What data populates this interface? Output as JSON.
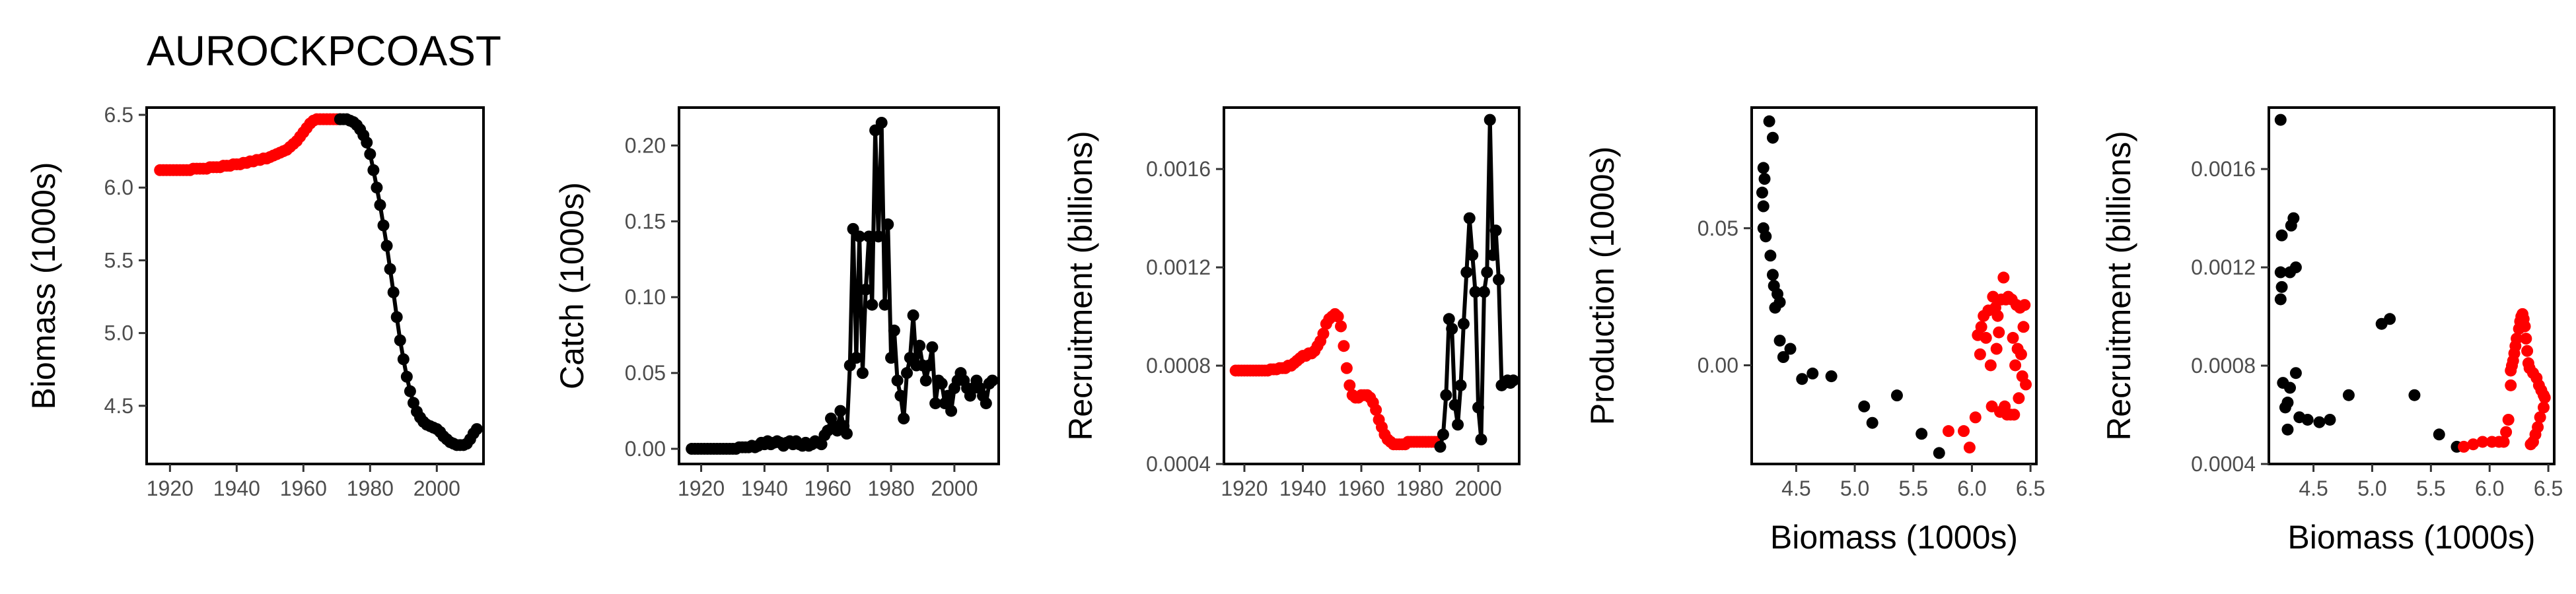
{
  "title": "AUROCKPCOAST",
  "colors": {
    "early": "#ff0000",
    "late": "#000000",
    "axis": "#000000",
    "tick_text": "#4d4d4d"
  },
  "chart_data": [
    {
      "type": "line",
      "xlabel": "",
      "ylabel": "Biomass (1000s)",
      "xlim": [
        1913,
        2014
      ],
      "ylim": [
        4.1,
        6.55
      ],
      "xticks": [
        1920,
        1940,
        1960,
        1980,
        2000
      ],
      "yticks": [
        4.5,
        5.0,
        5.5,
        6.0,
        6.5
      ],
      "ytick_labels": [
        "4.5",
        "5.0",
        "5.5",
        "6.0",
        "6.5"
      ],
      "series": [
        {
          "color": "red",
          "connected": false,
          "x_start": 1917,
          "x_end": 1971,
          "values": [
            6.12,
            6.12,
            6.12,
            6.12,
            6.12,
            6.12,
            6.12,
            6.12,
            6.12,
            6.12,
            6.13,
            6.13,
            6.13,
            6.13,
            6.13,
            6.14,
            6.14,
            6.14,
            6.14,
            6.15,
            6.15,
            6.15,
            6.16,
            6.16,
            6.16,
            6.17,
            6.17,
            6.18,
            6.18,
            6.19,
            6.19,
            6.2,
            6.2,
            6.21,
            6.22,
            6.23,
            6.24,
            6.25,
            6.26,
            6.28,
            6.3,
            6.32,
            6.35,
            6.38,
            6.41,
            6.44,
            6.46,
            6.47,
            6.47,
            6.47,
            6.47,
            6.47,
            6.47,
            6.47,
            6.47
          ]
        },
        {
          "color": "black",
          "connected": true,
          "x_start": 1971,
          "x_end": 2012,
          "values": [
            6.47,
            6.47,
            6.47,
            6.46,
            6.45,
            6.43,
            6.4,
            6.36,
            6.31,
            6.23,
            6.12,
            6.0,
            5.88,
            5.74,
            5.6,
            5.44,
            5.28,
            5.11,
            4.95,
            4.82,
            4.7,
            4.6,
            4.52,
            4.46,
            4.42,
            4.39,
            4.37,
            4.36,
            4.35,
            4.34,
            4.32,
            4.29,
            4.27,
            4.25,
            4.24,
            4.23,
            4.23,
            4.23,
            4.24,
            4.27,
            4.31,
            4.34
          ]
        }
      ]
    },
    {
      "type": "line",
      "xlabel": "",
      "ylabel": "Catch (1000s)",
      "xlim": [
        1913,
        2014
      ],
      "ylim": [
        -0.01,
        0.225
      ],
      "xticks": [
        1920,
        1940,
        1960,
        1980,
        2000
      ],
      "xtick_labels": [
        "1920",
        "1940",
        "1960",
        "1980",
        "2000"
      ],
      "yticks": [
        0.0,
        0.05,
        0.1,
        0.15,
        0.2
      ],
      "ytick_labels": [
        "0.00",
        "0.05",
        "0.10",
        "0.15",
        "0.20"
      ],
      "series": [
        {
          "color": "black",
          "connected": true,
          "x_start": 1917,
          "x_end": 2012,
          "values": [
            0,
            0,
            0,
            0,
            0,
            0,
            0,
            0,
            0,
            0,
            0,
            0,
            0,
            0,
            0,
            0.001,
            0.001,
            0.001,
            0.001,
            0.002,
            0.001,
            0.002,
            0.004,
            0.003,
            0.005,
            0.003,
            0.004,
            0.005,
            0.004,
            0.002,
            0.004,
            0.005,
            0.003,
            0.005,
            0.003,
            0.002,
            0.004,
            0.002,
            0.003,
            0.005,
            0.004,
            0.003,
            0.009,
            0.012,
            0.02,
            0.015,
            0.012,
            0.025,
            0.015,
            0.01,
            0.055,
            0.145,
            0.06,
            0.14,
            0.05,
            0.105,
            0.14,
            0.095,
            0.21,
            0.14,
            0.215,
            0.095,
            0.148,
            0.06,
            0.078,
            0.045,
            0.035,
            0.02,
            0.05,
            0.06,
            0.088,
            0.055,
            0.068,
            0.055,
            0.045,
            0.055,
            0.067,
            0.03,
            0.045,
            0.043,
            0.03,
            0.035,
            0.025,
            0.04,
            0.045,
            0.05,
            0.045,
            0.04,
            0.035,
            0.04,
            0.045,
            0.04,
            0.035,
            0.03,
            0.043,
            0.045
          ]
        }
      ]
    },
    {
      "type": "line",
      "xlabel": "",
      "ylabel": "Recruitment (billions)",
      "xlim": [
        1913,
        2014
      ],
      "ylim": [
        0.0004,
        0.00185
      ],
      "xticks": [
        1920,
        1940,
        1960,
        1980,
        2000
      ],
      "xtick_labels": [
        "1920",
        "1940",
        "1960",
        "1980",
        "2000"
      ],
      "yticks": [
        0.0004,
        0.0008,
        0.0012,
        0.0016
      ],
      "ytick_labels": [
        "0.0004",
        "0.0008",
        "0.0012",
        "0.0016"
      ],
      "series": [
        {
          "color": "red",
          "connected": false,
          "x_start": 1917,
          "x_end": 1986,
          "values": [
            0.00078,
            0.00078,
            0.00078,
            0.00078,
            0.00078,
            0.00078,
            0.00078,
            0.00078,
            0.00078,
            0.00078,
            0.00078,
            0.00078,
            0.000785,
            0.000785,
            0.000785,
            0.00079,
            0.00079,
            0.00079,
            0.0008,
            0.0008,
            0.00081,
            0.00082,
            0.00083,
            0.00084,
            0.00084,
            0.00085,
            0.00085,
            0.00086,
            0.00088,
            0.0009,
            0.00093,
            0.00097,
            0.00099,
            0.001,
            0.00101,
            0.001,
            0.00096,
            0.00088,
            0.00079,
            0.00072,
            0.00068,
            0.00067,
            0.00067,
            0.00068,
            0.00068,
            0.00068,
            0.00067,
            0.00065,
            0.00062,
            0.00058,
            0.00055,
            0.00052,
            0.0005,
            0.00049,
            0.00048,
            0.00048,
            0.00048,
            0.00048,
            0.00048,
            0.00049,
            0.00049,
            0.00049,
            0.00049,
            0.00049,
            0.00049,
            0.00049,
            0.00049,
            0.00049,
            0.00049,
            0.00049
          ]
        },
        {
          "color": "black",
          "connected": true,
          "x_start": 1987,
          "x_end": 2012,
          "values": [
            0.00047,
            0.00052,
            0.00068,
            0.00099,
            0.00095,
            0.00064,
            0.00056,
            0.00072,
            0.00097,
            0.00118,
            0.0014,
            0.00125,
            0.0011,
            0.00063,
            0.0005,
            0.0011,
            0.00118,
            0.0018,
            0.00125,
            0.00135,
            0.00115,
            0.00072,
            0.00073,
            0.00074,
            0.00073,
            0.00074
          ]
        }
      ]
    },
    {
      "type": "scatter",
      "xlabel": "Biomass (1000s)",
      "ylabel": "Production (1000s)",
      "xlim": [
        4.12,
        6.55
      ],
      "ylim": [
        -0.036,
        0.094
      ],
      "xticks": [
        4.5,
        5.0,
        5.5,
        6.0,
        6.5
      ],
      "xtick_labels": [
        "4.5",
        "5.0",
        "5.5",
        "6.0",
        "6.5"
      ],
      "yticks": [
        0.0,
        0.05
      ],
      "ytick_labels": [
        "0.00",
        "0.05"
      ],
      "series": [
        {
          "color": "black",
          "points": [
            [
              4.22,
              0.072
            ],
            [
              4.23,
              0.068
            ],
            [
              4.21,
              0.063
            ],
            [
              4.22,
              0.058
            ],
            [
              4.22,
              0.05
            ],
            [
              4.24,
              0.047
            ],
            [
              4.27,
              0.089
            ],
            [
              4.3,
              0.083
            ],
            [
              4.28,
              0.04
            ],
            [
              4.3,
              0.033
            ],
            [
              4.31,
              0.029
            ],
            [
              4.34,
              0.026
            ],
            [
              4.32,
              0.021
            ],
            [
              4.36,
              0.023
            ],
            [
              4.36,
              0.009
            ],
            [
              4.39,
              0.003
            ],
            [
              4.45,
              0.006
            ],
            [
              4.55,
              -0.005
            ],
            [
              4.64,
              -0.003
            ],
            [
              4.8,
              -0.004
            ],
            [
              5.08,
              -0.015
            ],
            [
              5.15,
              -0.021
            ],
            [
              5.36,
              -0.011
            ],
            [
              5.57,
              -0.025
            ],
            [
              5.72,
              -0.032
            ]
          ]
        },
        {
          "color": "red",
          "points": [
            [
              5.8,
              -0.024
            ],
            [
              5.93,
              -0.024
            ],
            [
              5.98,
              -0.03
            ],
            [
              6.03,
              -0.019
            ],
            [
              6.05,
              0.011
            ],
            [
              6.07,
              0.004
            ],
            [
              6.08,
              0.014
            ],
            [
              6.1,
              0.018
            ],
            [
              6.12,
              0.01
            ],
            [
              6.14,
              0.02
            ],
            [
              6.16,
              0.0
            ],
            [
              6.17,
              -0.015
            ],
            [
              6.18,
              0.025
            ],
            [
              6.2,
              0.021
            ],
            [
              6.21,
              0.006
            ],
            [
              6.22,
              0.018
            ],
            [
              6.23,
              0.012
            ],
            [
              6.24,
              -0.017
            ],
            [
              6.25,
              0.024
            ],
            [
              6.27,
              0.032
            ],
            [
              6.28,
              -0.015
            ],
            [
              6.29,
              0.024
            ],
            [
              6.3,
              -0.018
            ],
            [
              6.31,
              0.025
            ],
            [
              6.33,
              -0.018
            ],
            [
              6.34,
              0.024
            ],
            [
              6.35,
              0.01
            ],
            [
              6.36,
              -0.018
            ],
            [
              6.37,
              0.0
            ],
            [
              6.38,
              0.022
            ],
            [
              6.39,
              0.006
            ],
            [
              6.4,
              -0.012
            ],
            [
              6.41,
              0.021
            ],
            [
              6.42,
              0.004
            ],
            [
              6.43,
              -0.004
            ],
            [
              6.44,
              0.014
            ],
            [
              6.45,
              0.022
            ],
            [
              6.46,
              -0.007
            ]
          ]
        }
      ]
    },
    {
      "type": "scatter",
      "xlabel": "Biomass (1000s)",
      "ylabel": "Recruitment (billions)",
      "xlim": [
        4.12,
        6.55
      ],
      "ylim": [
        0.0004,
        0.00185
      ],
      "xticks": [
        4.5,
        5.0,
        5.5,
        6.0,
        6.5
      ],
      "xtick_labels": [
        "4.5",
        "5.0",
        "5.5",
        "6.0",
        "6.5"
      ],
      "yticks": [
        0.0004,
        0.0008,
        0.0012,
        0.0016
      ],
      "ytick_labels": [
        "0.0004",
        "0.0008",
        "0.0012",
        "0.0016"
      ],
      "series": [
        {
          "color": "black",
          "points": [
            [
              4.22,
              0.0018
            ],
            [
              4.23,
              0.00133
            ],
            [
              4.22,
              0.00118
            ],
            [
              4.23,
              0.00112
            ],
            [
              4.22,
              0.00107
            ],
            [
              4.24,
              0.00073
            ],
            [
              4.26,
              0.00063
            ],
            [
              4.28,
              0.00065
            ],
            [
              4.28,
              0.00054
            ],
            [
              4.3,
              0.00071
            ],
            [
              4.3,
              0.00118
            ],
            [
              4.31,
              0.00137
            ],
            [
              4.33,
              0.0014
            ],
            [
              4.35,
              0.0012
            ],
            [
              4.35,
              0.00077
            ],
            [
              4.38,
              0.00059
            ],
            [
              4.45,
              0.00058
            ],
            [
              4.55,
              0.00057
            ],
            [
              4.64,
              0.00058
            ],
            [
              4.8,
              0.00068
            ],
            [
              5.08,
              0.00097
            ],
            [
              5.15,
              0.00099
            ],
            [
              5.36,
              0.00068
            ],
            [
              5.57,
              0.00052
            ],
            [
              5.72,
              0.00047
            ]
          ]
        },
        {
          "color": "red",
          "points": [
            [
              5.78,
              0.00047
            ],
            [
              5.86,
              0.00048
            ],
            [
              5.94,
              0.00049
            ],
            [
              6.02,
              0.00049
            ],
            [
              6.08,
              0.00049
            ],
            [
              6.12,
              0.00049
            ],
            [
              6.14,
              0.00053
            ],
            [
              6.16,
              0.00058
            ],
            [
              6.18,
              0.00072
            ],
            [
              6.18,
              0.00078
            ],
            [
              6.19,
              0.0008
            ],
            [
              6.2,
              0.00082
            ],
            [
              6.21,
              0.00085
            ],
            [
              6.22,
              0.00088
            ],
            [
              6.23,
              0.00091
            ],
            [
              6.25,
              0.00095
            ],
            [
              6.26,
              0.00098
            ],
            [
              6.27,
              0.001
            ],
            [
              6.28,
              0.00101
            ],
            [
              6.29,
              0.00099
            ],
            [
              6.3,
              0.00096
            ],
            [
              6.31,
              0.00091
            ],
            [
              6.32,
              0.00086
            ],
            [
              6.33,
              0.00081
            ],
            [
              6.34,
              0.00079
            ],
            [
              6.37,
              0.00077
            ],
            [
              6.4,
              0.00075
            ],
            [
              6.42,
              0.00072
            ],
            [
              6.44,
              0.0007
            ],
            [
              6.46,
              0.00068
            ],
            [
              6.47,
              0.00067
            ],
            [
              6.46,
              0.00063
            ],
            [
              6.43,
              0.00059
            ],
            [
              6.41,
              0.00055
            ],
            [
              6.39,
              0.00052
            ],
            [
              6.37,
              0.00049
            ],
            [
              6.35,
              0.00048
            ]
          ]
        }
      ]
    }
  ]
}
